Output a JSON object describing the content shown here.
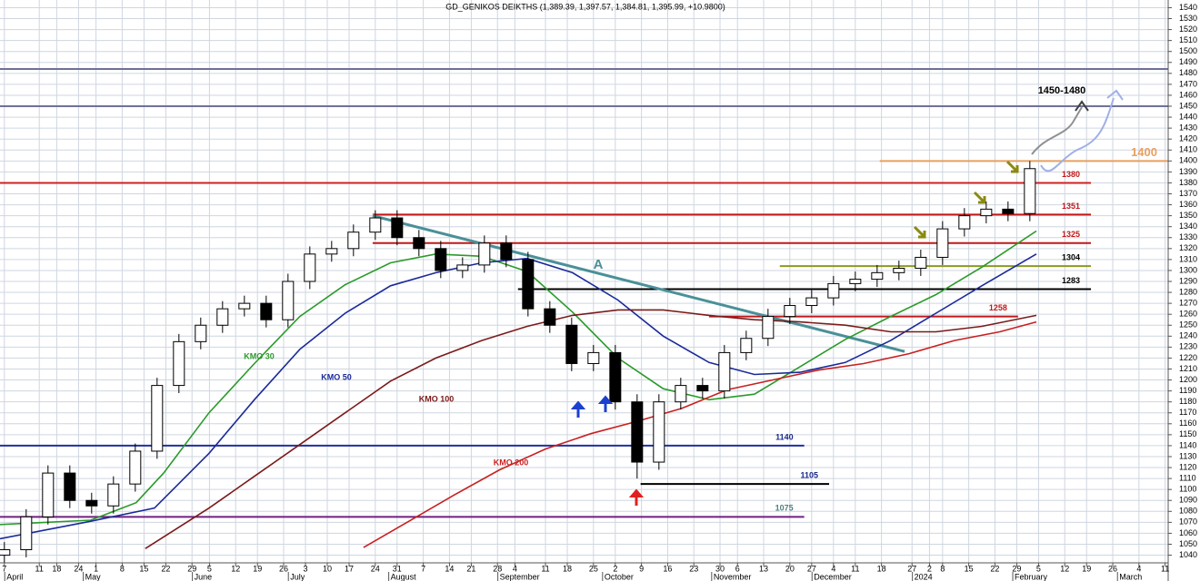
{
  "chart_data": {
    "type": "candlestick",
    "title": "GD_GENIKOS DEIKTHS (1,389.39, 1,397.57, 1,384.81, 1,395.99, +10.9800)",
    "xlim": [
      -1,
      266.7
    ],
    "ylim": [
      1033,
      1547
    ],
    "yticks": [
      1040,
      1050,
      1060,
      1070,
      1080,
      1090,
      1100,
      1110,
      1120,
      1130,
      1140,
      1150,
      1160,
      1170,
      1180,
      1190,
      1200,
      1210,
      1220,
      1230,
      1240,
      1250,
      1260,
      1270,
      1280,
      1290,
      1300,
      1310,
      1320,
      1330,
      1340,
      1350,
      1360,
      1370,
      1380,
      1390,
      1400,
      1410,
      1420,
      1430,
      1440,
      1450,
      1460,
      1470,
      1480,
      1490,
      1500,
      1510,
      1520,
      1530,
      1540
    ],
    "xticks": [
      {
        "value": 0,
        "label": "7"
      },
      {
        "value": 8,
        "label": "11"
      },
      {
        "value": 12,
        "label": "18"
      },
      {
        "value": 17,
        "label": "24"
      },
      {
        "value": 21,
        "label": "1"
      },
      {
        "value": 27,
        "label": "8"
      },
      {
        "value": 32,
        "label": "15"
      },
      {
        "value": 37,
        "label": "22"
      },
      {
        "value": 43,
        "label": "29"
      },
      {
        "value": 47,
        "label": "5"
      },
      {
        "value": 53,
        "label": "12"
      },
      {
        "value": 58,
        "label": "19"
      },
      {
        "value": 64,
        "label": "26"
      },
      {
        "value": 69,
        "label": "3"
      },
      {
        "value": 74,
        "label": "10"
      },
      {
        "value": 79,
        "label": "17"
      },
      {
        "value": 85,
        "label": "24"
      },
      {
        "value": 90,
        "label": "31"
      },
      {
        "value": 96,
        "label": "7"
      },
      {
        "value": 102,
        "label": "14"
      },
      {
        "value": 107,
        "label": "21"
      },
      {
        "value": 113,
        "label": "28"
      },
      {
        "value": 117,
        "label": "4"
      },
      {
        "value": 124,
        "label": "11"
      },
      {
        "value": 129,
        "label": "18"
      },
      {
        "value": 135,
        "label": "25"
      },
      {
        "value": 140,
        "label": "2"
      },
      {
        "value": 146,
        "label": "9"
      },
      {
        "value": 152,
        "label": "16"
      },
      {
        "value": 158,
        "label": "23"
      },
      {
        "value": 164,
        "label": "30"
      },
      {
        "value": 168,
        "label": "6"
      },
      {
        "value": 174,
        "label": "13"
      },
      {
        "value": 180,
        "label": "20"
      },
      {
        "value": 185,
        "label": "27"
      },
      {
        "value": 190,
        "label": "4"
      },
      {
        "value": 195,
        "label": "11"
      },
      {
        "value": 201,
        "label": "18"
      },
      {
        "value": 208,
        "label": "27"
      },
      {
        "value": 212,
        "label": "2"
      },
      {
        "value": 215,
        "label": "8"
      },
      {
        "value": 221,
        "label": "15"
      },
      {
        "value": 227,
        "label": "22"
      },
      {
        "value": 232,
        "label": "29"
      },
      {
        "value": 237,
        "label": "5"
      },
      {
        "value": 243,
        "label": "12"
      },
      {
        "value": 248,
        "label": "19"
      },
      {
        "value": 254,
        "label": "26"
      },
      {
        "value": 260,
        "label": "4"
      },
      {
        "value": 266,
        "label": "11"
      }
    ],
    "months": [
      {
        "value": 3,
        "label": "April"
      },
      {
        "value": 21,
        "label": "May"
      },
      {
        "value": 46,
        "label": "June"
      },
      {
        "value": 68,
        "label": "July"
      },
      {
        "value": 91,
        "label": "August"
      },
      {
        "value": 116,
        "label": "September"
      },
      {
        "value": 140,
        "label": "October"
      },
      {
        "value": 165,
        "label": "November"
      },
      {
        "value": 188,
        "label": "December"
      },
      {
        "value": 211,
        "label": "2024"
      },
      {
        "value": 234,
        "label": "February"
      },
      {
        "value": 258,
        "label": "March"
      }
    ],
    "grid": true,
    "candles": {
      "x": [
        0,
        5,
        10,
        15,
        20,
        25,
        30,
        35,
        40,
        45,
        50,
        55,
        60,
        65,
        70,
        75,
        80,
        85,
        90,
        95,
        100,
        105,
        110,
        115,
        120,
        125,
        130,
        135,
        140,
        145,
        150,
        155,
        160,
        165,
        170,
        175,
        180,
        185,
        190,
        195,
        200,
        205,
        210,
        215,
        220,
        225,
        230,
        235
      ],
      "open": [
        1040,
        1045,
        1075,
        1115,
        1090,
        1085,
        1105,
        1135,
        1195,
        1235,
        1250,
        1265,
        1270,
        1255,
        1290,
        1315,
        1320,
        1335,
        1348,
        1330,
        1320,
        1300,
        1305,
        1325,
        1310,
        1265,
        1250,
        1215,
        1225,
        1180,
        1125,
        1180,
        1195,
        1190,
        1225,
        1238,
        1258,
        1268,
        1275,
        1288,
        1292,
        1298,
        1302,
        1312,
        1338,
        1350,
        1356,
        1352
      ],
      "high": [
        1052,
        1082,
        1122,
        1122,
        1097,
        1112,
        1142,
        1202,
        1242,
        1257,
        1272,
        1277,
        1277,
        1297,
        1322,
        1327,
        1342,
        1355,
        1355,
        1337,
        1327,
        1312,
        1332,
        1332,
        1317,
        1272,
        1257,
        1232,
        1232,
        1187,
        1187,
        1202,
        1202,
        1232,
        1245,
        1265,
        1275,
        1282,
        1295,
        1299,
        1305,
        1309,
        1319,
        1345,
        1357,
        1363,
        1363,
        1400
      ],
      "low": [
        1033,
        1038,
        1068,
        1083,
        1078,
        1078,
        1098,
        1128,
        1188,
        1228,
        1243,
        1258,
        1248,
        1248,
        1283,
        1308,
        1313,
        1328,
        1323,
        1313,
        1293,
        1293,
        1298,
        1303,
        1258,
        1243,
        1208,
        1208,
        1173,
        1110,
        1118,
        1173,
        1183,
        1183,
        1218,
        1231,
        1251,
        1261,
        1268,
        1281,
        1285,
        1291,
        1295,
        1305,
        1331,
        1343,
        1345,
        1345
      ],
      "close": [
        1045,
        1075,
        1115,
        1090,
        1085,
        1105,
        1135,
        1195,
        1235,
        1250,
        1265,
        1270,
        1255,
        1290,
        1315,
        1320,
        1335,
        1348,
        1330,
        1320,
        1300,
        1305,
        1325,
        1310,
        1265,
        1250,
        1215,
        1225,
        1180,
        1125,
        1180,
        1195,
        1190,
        1225,
        1238,
        1258,
        1268,
        1275,
        1288,
        1292,
        1298,
        1302,
        1312,
        1338,
        1350,
        1356,
        1352,
        1393
      ]
    },
    "series": [
      {
        "name": "KMO 30",
        "color": "#2a9a2a",
        "x": [
          -1,
          9.4,
          19.8,
          30.2,
          36.5,
          46.9,
          57.3,
          67.7,
          78.1,
          88.5,
          98.9,
          109.4,
          119.8,
          130.2,
          140.6,
          151,
          161.5,
          171.9,
          182.3,
          192.7,
          203.1,
          213.5,
          224,
          236.5
        ],
        "values": [
          1068,
          1070,
          1072,
          1088,
          1115,
          1170,
          1215,
          1258,
          1287,
          1307,
          1315,
          1313,
          1299,
          1262,
          1220,
          1192,
          1182,
          1187,
          1212,
          1237,
          1258,
          1278,
          1303,
          1336
        ]
      },
      {
        "name": "KMO 50",
        "color": "#1a2a9a",
        "x": [
          -1,
          19.8,
          34.4,
          46.9,
          57.3,
          67.7,
          78.1,
          88.5,
          98.9,
          109.4,
          119.8,
          130.2,
          140.6,
          151,
          161.5,
          171.9,
          182.3,
          192.7,
          203.1,
          213.5,
          224,
          236.5
        ],
        "values": [
          1055,
          1071,
          1083,
          1133,
          1182,
          1228,
          1261,
          1286,
          1298,
          1307,
          1311,
          1298,
          1273,
          1240,
          1216,
          1205,
          1207,
          1216,
          1236,
          1261,
          1286,
          1315
        ]
      },
      {
        "name": "KMO 100",
        "color": "#7a1a1a",
        "x": [
          32.3,
          46.9,
          57.3,
          67.7,
          78.1,
          88.5,
          98.9,
          109.4,
          119.8,
          130.2,
          140.6,
          151,
          161.5,
          171.9,
          182.3,
          192.7,
          203.1,
          213.5,
          224,
          236.5
        ],
        "values": [
          1046,
          1083,
          1112,
          1141,
          1170,
          1199,
          1220,
          1236,
          1249,
          1259,
          1264,
          1264,
          1259,
          1255,
          1253,
          1250,
          1244,
          1244,
          1249,
          1259
        ]
      },
      {
        "name": "KMO 200",
        "color": "#c82020",
        "x": [
          82.3,
          92.7,
          103.1,
          113.5,
          124,
          134.4,
          144.8,
          155.2,
          165.6,
          176,
          186.5,
          196.9,
          207.3,
          217.7,
          228.1,
          236.5
        ],
        "values": [
          1047,
          1071,
          1095,
          1118,
          1137,
          1151,
          1162,
          1174,
          1191,
          1200,
          1209,
          1215,
          1224,
          1236,
          1244,
          1253
        ]
      }
    ],
    "levels": [
      {
        "value": 1484,
        "color": "#70709a",
        "from": -1,
        "to": 266.7,
        "labeled": false
      },
      {
        "value": 1450,
        "color": "#70709a",
        "from": -1,
        "to": 266.7,
        "labeled": false
      },
      {
        "value": 1400,
        "color": "#e8a060",
        "from": 200.6,
        "to": 266.7,
        "labeled": true,
        "label_color": "#e8a060"
      },
      {
        "value": 1380,
        "color": "#d02020",
        "from": -1,
        "to": 249,
        "labeled": true,
        "label_color": "#c01818"
      },
      {
        "value": 1351,
        "color": "#c01818",
        "from": 84.4,
        "to": 249,
        "labeled": true,
        "label_color": "#c01818"
      },
      {
        "value": 1325,
        "color": "#c01818",
        "from": 84.4,
        "to": 249,
        "labeled": true,
        "label_color": "#c01818"
      },
      {
        "value": 1304,
        "color": "#8a9a20",
        "from": 177.7,
        "to": 249,
        "labeled": true,
        "label_color": "#000000"
      },
      {
        "value": 1283,
        "color": "#000000",
        "from": 117.7,
        "to": 249,
        "labeled": true,
        "label_color": "#000000"
      },
      {
        "value": 1258,
        "color": "#c01818",
        "from": 161.5,
        "to": 232.3,
        "labeled": true,
        "label_color": "#c01818"
      },
      {
        "value": 1140,
        "color": "#2030a0",
        "from": -1,
        "to": 183.3,
        "labeled": true,
        "label_color": "#1a2a8a"
      },
      {
        "value": 1105,
        "color": "#000000",
        "from": 145.8,
        "to": 189,
        "labeled": true,
        "label_color": "#1a2a8a"
      },
      {
        "value": 1075,
        "color": "#702080",
        "from": -1,
        "to": 183.3,
        "labeled": true,
        "label_color": "#508080"
      }
    ],
    "trendline": {
      "label": "A",
      "color": "#4a9098",
      "x": [
        84.4,
        206.3
      ],
      "values": [
        1350,
        1226
      ]
    },
    "annotation": "1450-1480"
  }
}
